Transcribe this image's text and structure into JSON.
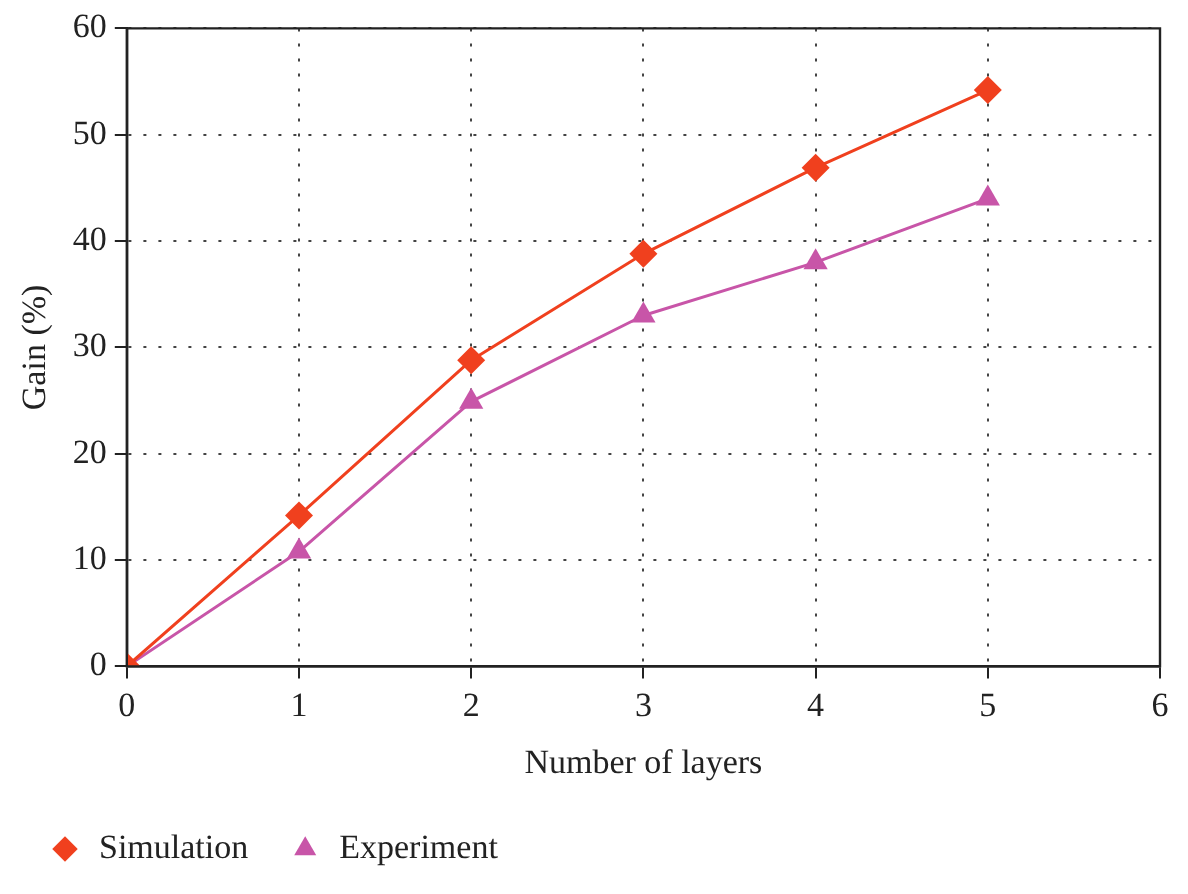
{
  "chart_data": {
    "type": "line",
    "xlabel": "Number of layers",
    "ylabel": "Gain (%)",
    "x": [
      0,
      1,
      2,
      3,
      4,
      5
    ],
    "series": [
      {
        "name": "Simulation",
        "color": "#f0401e",
        "marker": "diamond",
        "values": [
          0,
          14.2,
          28.8,
          38.8,
          46.9,
          54.2
        ]
      },
      {
        "name": "Experiment",
        "color": "#c855a8",
        "marker": "triangle",
        "values": [
          0,
          10.8,
          24.9,
          33,
          38,
          44
        ]
      }
    ],
    "xlim": [
      0,
      6
    ],
    "xticks": [
      0,
      1,
      2,
      3,
      4,
      5,
      6
    ],
    "ylim": [
      0,
      60
    ],
    "yticks": [
      0,
      10,
      20,
      30,
      40,
      50,
      60
    ],
    "grid": true,
    "line_style": "solid",
    "legend": "bottom left"
  }
}
